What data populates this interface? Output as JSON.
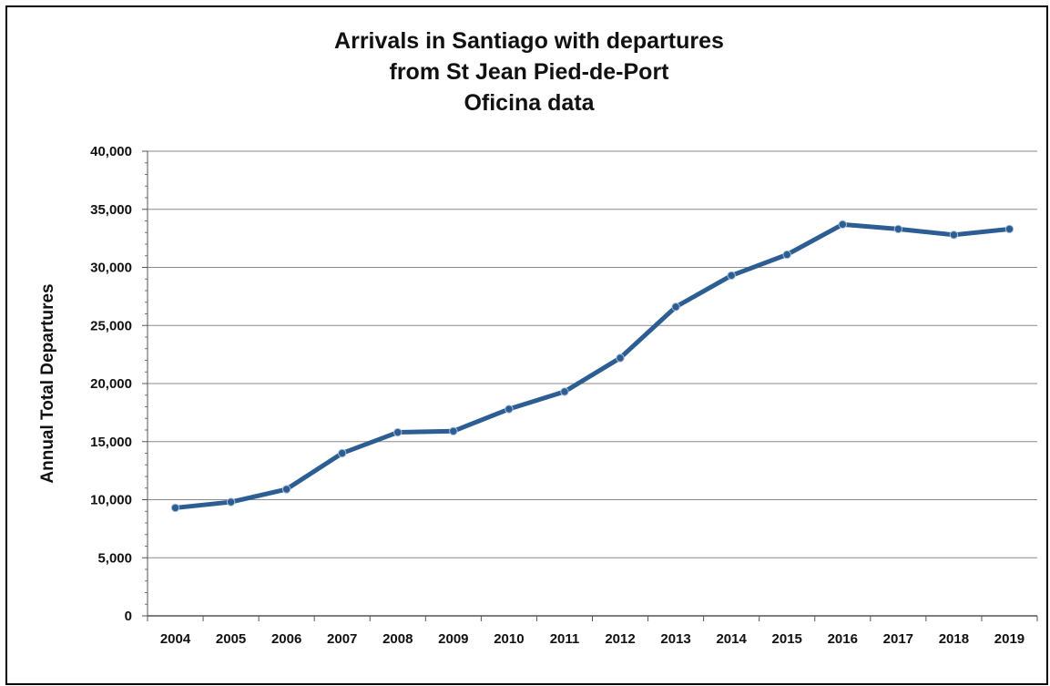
{
  "chart_data": {
    "type": "line",
    "title_lines": [
      "Arrivals in Santiago with departures",
      "from St Jean Pied-de-Port",
      "Oficina data"
    ],
    "xlabel": "",
    "ylabel": "Annual Total Departures",
    "x": [
      "2004",
      "2005",
      "2006",
      "2007",
      "2008",
      "2009",
      "2010",
      "2011",
      "2012",
      "2013",
      "2014",
      "2015",
      "2016",
      "2017",
      "2018",
      "2019"
    ],
    "series": [
      {
        "values": [
          9300,
          9800,
          10900,
          14000,
          15800,
          15900,
          17800,
          19300,
          22200,
          26600,
          29300,
          31100,
          33700,
          33300,
          32800,
          33300
        ],
        "color": "#2c5d93"
      }
    ],
    "yticks": [
      "0",
      "5,000",
      "10,000",
      "15,000",
      "20,000",
      "25,000",
      "30,000",
      "35,000",
      "40,000"
    ],
    "ytick_values": [
      0,
      5000,
      10000,
      15000,
      20000,
      25000,
      30000,
      35000,
      40000
    ],
    "ylim": [
      0,
      40000
    ],
    "grid": true,
    "legend": "none"
  }
}
